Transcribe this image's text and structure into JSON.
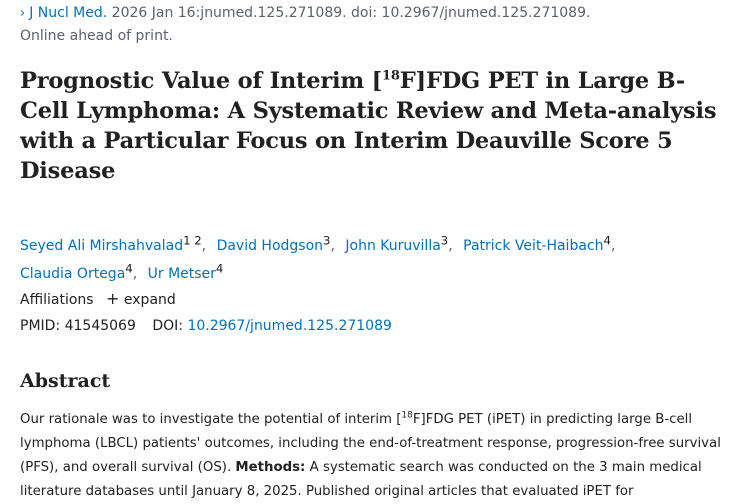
{
  "citation": {
    "chevron": "›",
    "journal": "J Nucl Med.",
    "details": "2026 Jan 16:jnumed.125.271089. doi: 10.2967/jnumed.125.271089.",
    "status": "Online ahead of print."
  },
  "title": {
    "part1": "Prognostic Value of Interim [",
    "sup": "18",
    "part2": "F]FDG PET in Large B-Cell Lymphoma: A Systematic Review and Meta-analysis with a Particular Focus on Interim Deauville Score 5 Disease"
  },
  "authors": [
    {
      "name": "Seyed Ali Mirshahvalad",
      "sup": "1 2",
      "sep": ","
    },
    {
      "name": "David Hodgson",
      "sup": "3",
      "sep": ","
    },
    {
      "name": "John Kuruvilla",
      "sup": "3",
      "sep": ","
    },
    {
      "name": "Patrick Veit-Haibach",
      "sup": "4",
      "sep": ","
    },
    {
      "name": "Claudia Ortega",
      "sup": "4",
      "sep": ","
    },
    {
      "name": "Ur Metser",
      "sup": "4",
      "sep": ""
    }
  ],
  "affiliations": {
    "label": "Affiliations",
    "expand_icon": "+",
    "expand_label": "expand"
  },
  "ids": {
    "pmid_label": "PMID:",
    "pmid": "41545069",
    "doi_label": "DOI:",
    "doi": "10.2967/jnumed.125.271089"
  },
  "abstract": {
    "heading": "Abstract",
    "text1": "Our rationale was to investigate the potential of interim [",
    "sup": "18",
    "text2": "F]FDG PET (iPET) in predicting large B-cell lymphoma (LBCL) patients' outcomes, including the end-of-treatment response, progression-free survival (PFS), and overall survival (OS). ",
    "methods_label": "Methods:",
    "text3": " A systematic search was conducted on the 3 main medical literature databases until January 8, 2025. Published original articles that evaluated iPET for"
  },
  "colors": {
    "link": "#0071bc",
    "text": "#212121",
    "muted": "#5b616b"
  }
}
